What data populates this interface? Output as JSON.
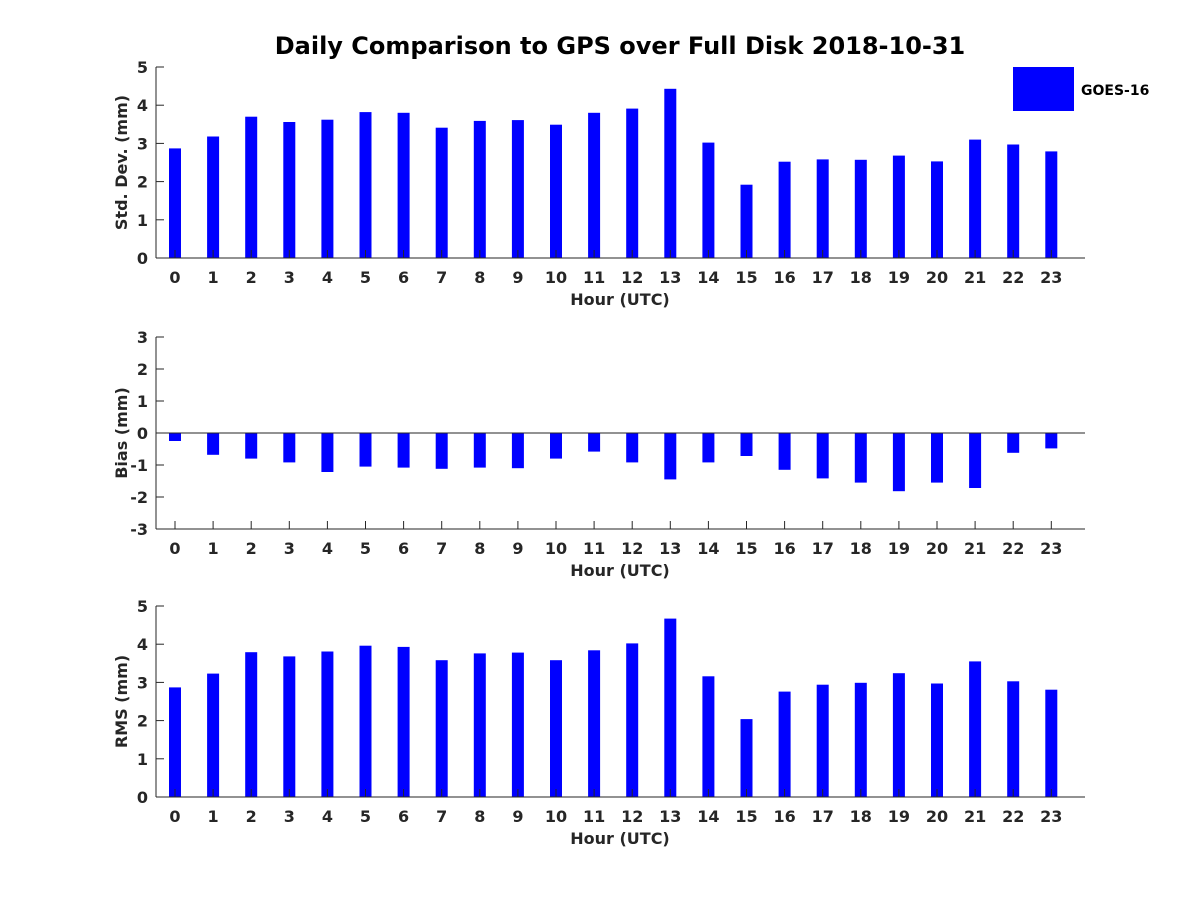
{
  "title": "Daily Comparison to GPS over Full Disk 2018-10-31",
  "legend": {
    "label": "GOES-16",
    "color": "#0000ff",
    "placement": "top-right"
  },
  "chart_data": [
    {
      "type": "bar",
      "xlabel": "Hour (UTC)",
      "ylabel": "Std. Dev. (mm)",
      "categories": [
        "0",
        "1",
        "2",
        "3",
        "4",
        "5",
        "6",
        "7",
        "8",
        "9",
        "10",
        "11",
        "12",
        "13",
        "14",
        "15",
        "16",
        "17",
        "18",
        "19",
        "20",
        "21",
        "22",
        "23"
      ],
      "series": [
        {
          "name": "GOES-16",
          "values": [
            2.87,
            3.18,
            3.7,
            3.56,
            3.62,
            3.82,
            3.8,
            3.41,
            3.59,
            3.61,
            3.49,
            3.8,
            3.91,
            4.43,
            3.02,
            1.92,
            2.52,
            2.58,
            2.57,
            2.68,
            2.53,
            3.1,
            2.97,
            2.79
          ]
        }
      ],
      "ylim": [
        0,
        5
      ],
      "yticks": [
        0,
        1,
        2,
        3,
        4,
        5
      ],
      "grid": false
    },
    {
      "type": "bar",
      "xlabel": "Hour (UTC)",
      "ylabel": "Bias (mm)",
      "categories": [
        "0",
        "1",
        "2",
        "3",
        "4",
        "5",
        "6",
        "7",
        "8",
        "9",
        "10",
        "11",
        "12",
        "13",
        "14",
        "15",
        "16",
        "17",
        "18",
        "19",
        "20",
        "21",
        "22",
        "23"
      ],
      "series": [
        {
          "name": "GOES-16",
          "values": [
            -0.25,
            -0.68,
            -0.8,
            -0.92,
            -1.22,
            -1.05,
            -1.08,
            -1.12,
            -1.08,
            -1.1,
            -0.8,
            -0.58,
            -0.92,
            -1.45,
            -0.92,
            -0.72,
            -1.15,
            -1.42,
            -1.55,
            -1.82,
            -1.55,
            -1.72,
            -0.62,
            -0.48
          ]
        }
      ],
      "ylim": [
        -3,
        3
      ],
      "yticks": [
        -3,
        -2,
        -1,
        0,
        1,
        2,
        3
      ],
      "zero_line": true,
      "grid": false
    },
    {
      "type": "bar",
      "xlabel": "Hour (UTC)",
      "ylabel": "RMS (mm)",
      "categories": [
        "0",
        "1",
        "2",
        "3",
        "4",
        "5",
        "6",
        "7",
        "8",
        "9",
        "10",
        "11",
        "12",
        "13",
        "14",
        "15",
        "16",
        "17",
        "18",
        "19",
        "20",
        "21",
        "22",
        "23"
      ],
      "series": [
        {
          "name": "GOES-16",
          "values": [
            2.87,
            3.23,
            3.79,
            3.68,
            3.81,
            3.96,
            3.93,
            3.58,
            3.76,
            3.78,
            3.58,
            3.84,
            4.02,
            4.67,
            3.16,
            2.04,
            2.76,
            2.94,
            2.99,
            3.24,
            2.97,
            3.55,
            3.03,
            2.81
          ]
        }
      ],
      "ylim": [
        0,
        5
      ],
      "yticks": [
        0,
        1,
        2,
        3,
        4,
        5
      ],
      "grid": false
    }
  ]
}
